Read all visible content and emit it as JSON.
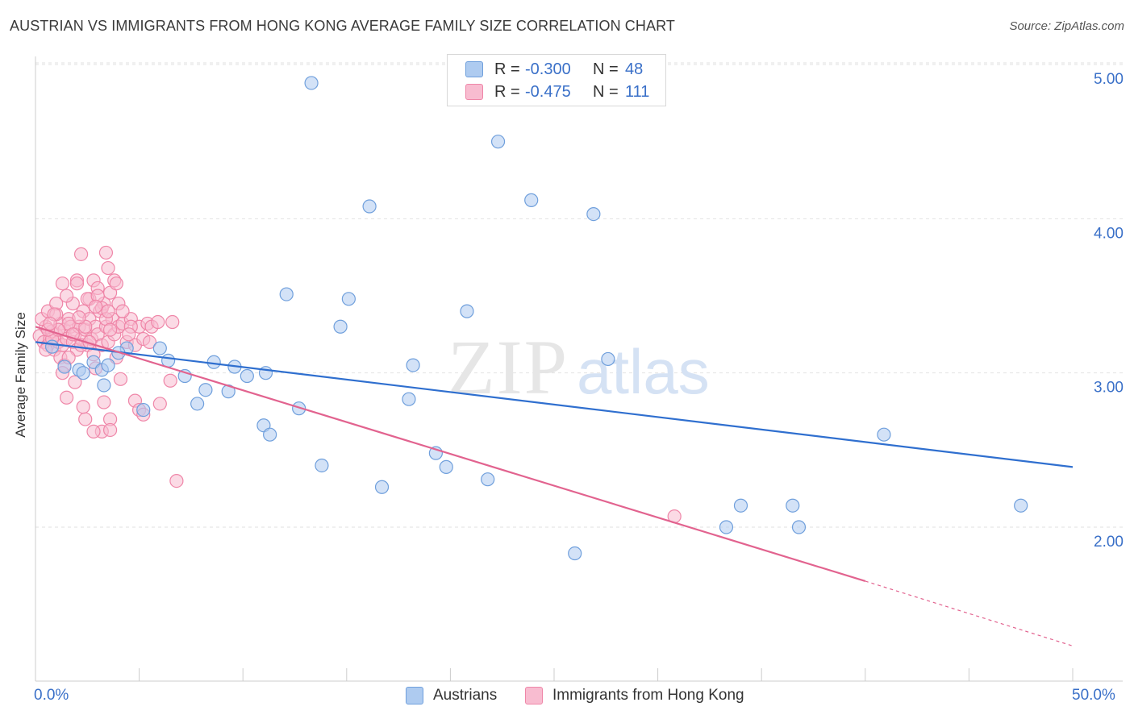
{
  "title": "AUSTRIAN VS IMMIGRANTS FROM HONG KONG AVERAGE FAMILY SIZE CORRELATION CHART",
  "source": "Source: ZipAtlas.com",
  "watermark": {
    "zip": "ZIP",
    "atlas": "atlas"
  },
  "colors": {
    "blue_fill": "#aecbf0",
    "blue_stroke": "#6f9fdc",
    "blue_line": "#2f6fcf",
    "pink_fill": "#f8bcd0",
    "pink_stroke": "#ef86a8",
    "pink_line": "#e2638f",
    "tick_text": "#3a70c8",
    "grid": "#e2e2e2"
  },
  "legend_top": {
    "rows": [
      {
        "r_label": "R =",
        "r_value": "-0.300",
        "n_label": "N =",
        "n_value": "48"
      },
      {
        "r_label": "R =",
        "r_value": "-0.475",
        "n_label": "N =",
        "n_value": "111"
      }
    ]
  },
  "legend_bottom": {
    "items": [
      "Austrians",
      "Immigrants from Hong Kong"
    ]
  },
  "chart_data": {
    "type": "scatter",
    "title": "AUSTRIAN VS IMMIGRANTS FROM HONG KONG AVERAGE FAMILY SIZE CORRELATION CHART",
    "xlabel": "",
    "ylabel": "Average Family Size",
    "xlim": [
      0,
      50
    ],
    "ylim": [
      1.2,
      5.1
    ],
    "x_tick_labels": [
      "0.0%",
      "50.0%"
    ],
    "y_ticks": [
      2.0,
      3.0,
      4.0,
      5.0
    ],
    "y_tick_labels": [
      "2.00",
      "3.00",
      "4.00",
      "5.00"
    ],
    "grid": true,
    "legend_position": "top-center",
    "series": [
      {
        "name": "Austrians",
        "color": "#6f9fdc",
        "trend": {
          "x": [
            0,
            50
          ],
          "y": [
            3.2,
            2.39
          ]
        },
        "points": [
          [
            13.3,
            4.88
          ],
          [
            22.3,
            4.5
          ],
          [
            16.1,
            4.08
          ],
          [
            23.9,
            4.12
          ],
          [
            26.9,
            4.03
          ],
          [
            12.1,
            3.51
          ],
          [
            15.1,
            3.48
          ],
          [
            20.8,
            3.4
          ],
          [
            14.7,
            3.3
          ],
          [
            27.6,
            3.09
          ],
          [
            18.2,
            3.05
          ],
          [
            6.0,
            3.16
          ],
          [
            4.4,
            3.16
          ],
          [
            4.0,
            3.13
          ],
          [
            2.8,
            3.07
          ],
          [
            6.4,
            3.08
          ],
          [
            8.6,
            3.07
          ],
          [
            9.6,
            3.04
          ],
          [
            2.1,
            3.02
          ],
          [
            3.2,
            3.02
          ],
          [
            1.4,
            3.04
          ],
          [
            2.3,
            3.0
          ],
          [
            3.5,
            3.05
          ],
          [
            10.2,
            2.98
          ],
          [
            7.2,
            2.98
          ],
          [
            5.2,
            2.76
          ],
          [
            3.3,
            2.92
          ],
          [
            18.0,
            2.83
          ],
          [
            7.8,
            2.8
          ],
          [
            8.2,
            2.89
          ],
          [
            9.3,
            2.88
          ],
          [
            11.1,
            3.0
          ],
          [
            12.7,
            2.77
          ],
          [
            11.0,
            2.66
          ],
          [
            11.3,
            2.6
          ],
          [
            13.8,
            2.4
          ],
          [
            19.3,
            2.48
          ],
          [
            19.8,
            2.39
          ],
          [
            16.7,
            2.26
          ],
          [
            21.8,
            2.31
          ],
          [
            40.9,
            2.6
          ],
          [
            47.5,
            2.14
          ],
          [
            36.5,
            2.14
          ],
          [
            34.0,
            2.14
          ],
          [
            36.8,
            2.0
          ],
          [
            33.3,
            2.0
          ],
          [
            26.0,
            1.83
          ],
          [
            0.8,
            3.17
          ]
        ]
      },
      {
        "name": "Immigrants from Hong Kong",
        "color": "#ef86a8",
        "trend": {
          "x": [
            0,
            40
          ],
          "y": [
            3.3,
            1.65
          ]
        },
        "trend_dashed": {
          "x": [
            40,
            50
          ],
          "y": [
            1.65,
            1.23
          ]
        },
        "points": [
          [
            0.2,
            3.24
          ],
          [
            0.4,
            3.2
          ],
          [
            0.5,
            3.3
          ],
          [
            0.6,
            3.18
          ],
          [
            0.7,
            3.22
          ],
          [
            0.8,
            3.27
          ],
          [
            0.9,
            3.15
          ],
          [
            1.0,
            3.25
          ],
          [
            1.1,
            3.2
          ],
          [
            1.2,
            3.32
          ],
          [
            1.3,
            3.18
          ],
          [
            1.4,
            3.28
          ],
          [
            1.5,
            3.22
          ],
          [
            1.6,
            3.35
          ],
          [
            1.7,
            3.3
          ],
          [
            1.8,
            3.2
          ],
          [
            1.9,
            3.25
          ],
          [
            2.0,
            3.15
          ],
          [
            2.1,
            3.3
          ],
          [
            2.2,
            3.22
          ],
          [
            2.3,
            3.4
          ],
          [
            2.4,
            3.28
          ],
          [
            2.5,
            3.18
          ],
          [
            2.6,
            3.35
          ],
          [
            2.7,
            3.22
          ],
          [
            2.8,
            3.12
          ],
          [
            2.9,
            3.3
          ],
          [
            3.0,
            3.25
          ],
          [
            3.1,
            3.4
          ],
          [
            3.2,
            3.18
          ],
          [
            3.3,
            3.45
          ],
          [
            3.4,
            3.3
          ],
          [
            3.5,
            3.2
          ],
          [
            3.6,
            3.52
          ],
          [
            3.7,
            3.35
          ],
          [
            3.8,
            3.25
          ],
          [
            3.9,
            3.1
          ],
          [
            4.0,
            3.3
          ],
          [
            0.3,
            3.35
          ],
          [
            0.5,
            3.15
          ],
          [
            0.6,
            3.4
          ],
          [
            0.8,
            3.22
          ],
          [
            1.0,
            3.38
          ],
          [
            1.2,
            3.1
          ],
          [
            1.4,
            3.05
          ],
          [
            1.6,
            3.32
          ],
          [
            1.8,
            3.45
          ],
          [
            2.0,
            3.6
          ],
          [
            2.2,
            3.18
          ],
          [
            2.4,
            3.3
          ],
          [
            2.6,
            3.48
          ],
          [
            2.8,
            3.6
          ],
          [
            3.0,
            3.55
          ],
          [
            3.2,
            3.42
          ],
          [
            3.4,
            3.35
          ],
          [
            3.6,
            3.28
          ],
          [
            3.8,
            3.6
          ],
          [
            4.0,
            3.45
          ],
          [
            4.2,
            3.32
          ],
          [
            4.4,
            3.2
          ],
          [
            4.6,
            3.35
          ],
          [
            4.8,
            3.18
          ],
          [
            5.0,
            3.3
          ],
          [
            5.2,
            3.22
          ],
          [
            5.4,
            3.32
          ],
          [
            5.6,
            3.3
          ],
          [
            1.5,
            3.5
          ],
          [
            2.0,
            3.58
          ],
          [
            2.5,
            3.48
          ],
          [
            3.0,
            3.5
          ],
          [
            3.5,
            3.4
          ],
          [
            1.0,
            3.45
          ],
          [
            0.9,
            3.38
          ],
          [
            1.1,
            3.28
          ],
          [
            1.3,
            3.0
          ],
          [
            2.9,
            3.03
          ],
          [
            3.3,
            2.81
          ],
          [
            4.8,
            2.82
          ],
          [
            5.0,
            2.76
          ],
          [
            5.2,
            2.73
          ],
          [
            3.2,
            2.62
          ],
          [
            2.4,
            2.7
          ],
          [
            3.6,
            2.7
          ],
          [
            2.3,
            2.78
          ],
          [
            2.8,
            2.62
          ],
          [
            1.5,
            2.84
          ],
          [
            1.9,
            2.94
          ],
          [
            6.5,
            2.95
          ],
          [
            4.1,
            2.96
          ],
          [
            2.9,
            3.43
          ],
          [
            4.2,
            3.4
          ],
          [
            4.6,
            3.3
          ],
          [
            5.9,
            3.33
          ],
          [
            6.6,
            3.33
          ],
          [
            3.6,
            2.63
          ],
          [
            2.2,
            3.77
          ],
          [
            3.5,
            3.68
          ],
          [
            3.4,
            3.78
          ],
          [
            3.9,
            3.58
          ],
          [
            1.3,
            3.58
          ],
          [
            0.6,
            3.28
          ],
          [
            0.7,
            3.32
          ],
          [
            1.8,
            3.25
          ],
          [
            2.6,
            3.2
          ],
          [
            4.5,
            3.25
          ],
          [
            5.5,
            3.2
          ],
          [
            6.0,
            2.8
          ],
          [
            6.8,
            2.3
          ],
          [
            30.8,
            2.07
          ],
          [
            1.6,
            3.1
          ],
          [
            2.1,
            3.36
          ]
        ]
      }
    ]
  }
}
